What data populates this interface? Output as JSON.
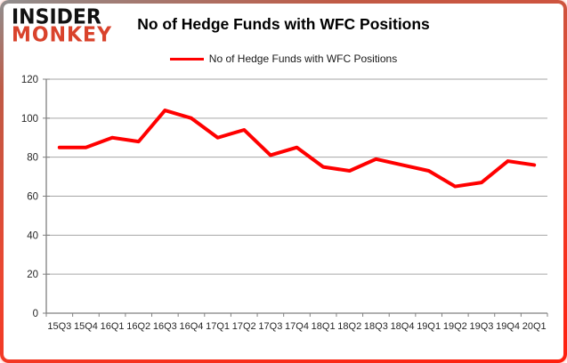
{
  "brand": {
    "line1": "INSIDER",
    "line2": "MONKEY",
    "line2_color": "#d9432c"
  },
  "header": {
    "title": "No of Hedge Funds with WFC Positions"
  },
  "legend": {
    "label": "No of Hedge Funds with WFC Positions",
    "swatch_color": "#ff0000"
  },
  "chart_data": {
    "type": "line",
    "title": "No of Hedge Funds with WFC Positions",
    "categories": [
      "15Q3",
      "15Q4",
      "16Q1",
      "16Q2",
      "16Q3",
      "16Q4",
      "17Q1",
      "17Q2",
      "17Q3",
      "17Q4",
      "18Q1",
      "18Q2",
      "18Q3",
      "18Q4",
      "19Q1",
      "19Q2",
      "19Q3",
      "19Q4",
      "20Q1"
    ],
    "series": [
      {
        "name": "No of Hedge Funds with WFC Positions",
        "color": "#ff0000",
        "values": [
          85,
          85,
          90,
          88,
          104,
          100,
          90,
          94,
          81,
          85,
          75,
          73,
          79,
          76,
          73,
          65,
          67,
          78,
          76
        ]
      }
    ],
    "xlabel": "",
    "ylabel": "",
    "ylim": [
      0,
      120
    ],
    "ytick_interval": 20,
    "grid": true,
    "gridline_color": "#a6a6a6",
    "axis_color": "#808080",
    "tick_label_color": "#262626",
    "legend_position": "top-center"
  }
}
